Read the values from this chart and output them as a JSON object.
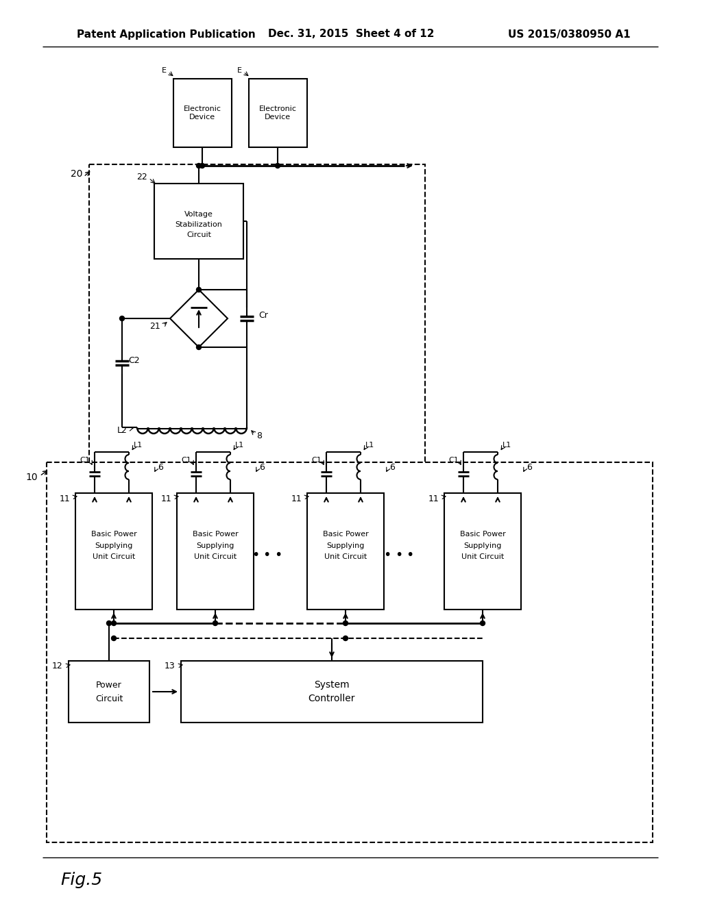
{
  "header_left": "Patent Application Publication",
  "header_mid": "Dec. 31, 2015  Sheet 4 of 12",
  "header_right": "US 2015/0380950 A1",
  "fig_label": "Fig.5",
  "bg_color": "#ffffff",
  "lc": "#000000"
}
